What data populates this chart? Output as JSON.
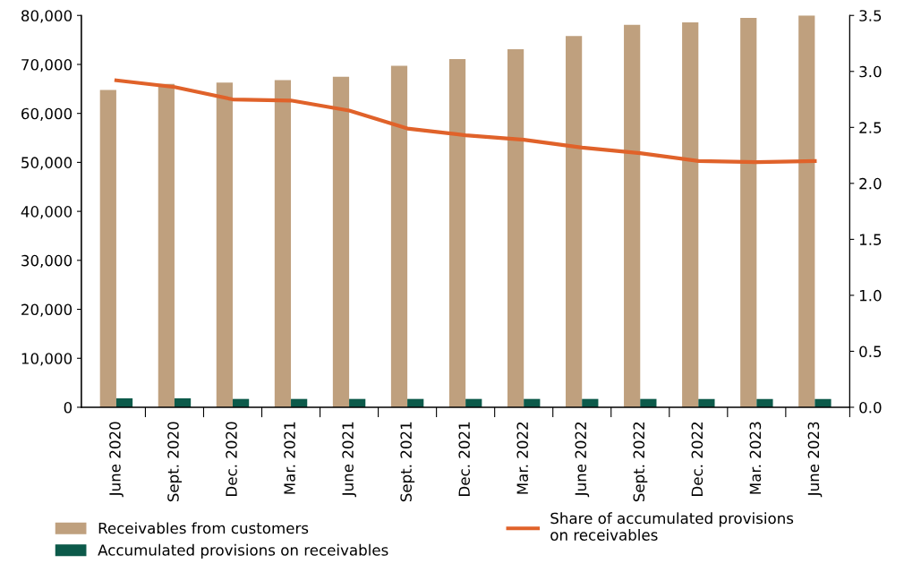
{
  "chart_data": {
    "type": "bar",
    "categories": [
      "June 2020",
      "Sept. 2020",
      "Dec. 2020",
      "Mar. 2021",
      "June 2021",
      "Sept. 2021",
      "Dec. 2021",
      "Mar. 2022",
      "June 2022",
      "Sept. 2022",
      "Dec. 2022",
      "Mar. 2023",
      "June 2023"
    ],
    "series": [
      {
        "name": "Receivables from customers",
        "color": "#bfa07e",
        "values": [
          64800,
          66000,
          66300,
          66800,
          67500,
          69700,
          71100,
          73100,
          75800,
          78100,
          78600,
          79500,
          80000
        ]
      },
      {
        "name": "Accumulated provisions on receivables",
        "color": "#0c5a4a",
        "values": [
          1800,
          1800,
          1700,
          1700,
          1700,
          1700,
          1700,
          1700,
          1700,
          1700,
          1700,
          1700,
          1700
        ]
      },
      {
        "name": "Share of accumulated provisions\non receivables",
        "color": "#e0622a",
        "type": "line",
        "axis": "y2",
        "values": [
          2.92,
          2.86,
          2.75,
          2.74,
          2.65,
          2.49,
          2.43,
          2.39,
          2.32,
          2.27,
          2.2,
          2.19,
          2.2
        ]
      }
    ],
    "ylim": [
      0,
      80000
    ],
    "yticks": [
      {
        "value": 0,
        "label": "0"
      },
      {
        "value": 10000,
        "label": "10,000"
      },
      {
        "value": 20000,
        "label": "20,000"
      },
      {
        "value": 30000,
        "label": "30,000"
      },
      {
        "value": 40000,
        "label": "40,000"
      },
      {
        "value": 50000,
        "label": "50,000"
      },
      {
        "value": 60000,
        "label": "60,000"
      },
      {
        "value": 70000,
        "label": "70,000"
      },
      {
        "value": 80000,
        "label": "80,000"
      }
    ],
    "y2lim": [
      0,
      3.5
    ],
    "y2ticks": [
      {
        "value": 0,
        "label": "0.0"
      },
      {
        "value": 0.5,
        "label": "0.5"
      },
      {
        "value": 1,
        "label": "1.0"
      },
      {
        "value": 1.5,
        "label": "1.5"
      },
      {
        "value": 2,
        "label": "2.0"
      },
      {
        "value": 2.5,
        "label": "2.5"
      },
      {
        "value": 3,
        "label": "3.0"
      },
      {
        "value": 3.5,
        "label": "3.5"
      }
    ],
    "grid": false,
    "legend": "bottom"
  }
}
